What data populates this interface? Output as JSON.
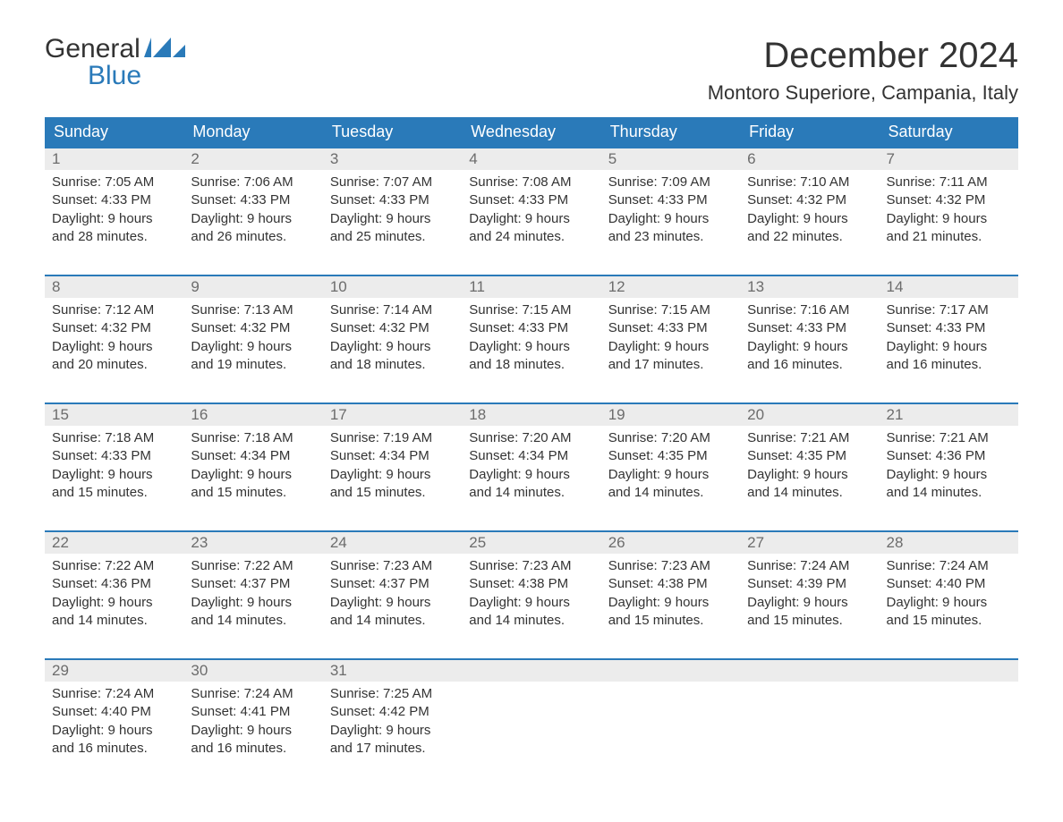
{
  "brand": {
    "word1": "General",
    "word2": "Blue"
  },
  "colors": {
    "brandBlue": "#2a7ab9",
    "headerText": "#333333",
    "dayNumBg": "#ececec",
    "dayNumText": "#6c6c6c",
    "bodyText": "#333333",
    "background": "#ffffff"
  },
  "title": "December 2024",
  "location": "Montoro Superiore, Campania, Italy",
  "daysOfWeek": [
    "Sunday",
    "Monday",
    "Tuesday",
    "Wednesday",
    "Thursday",
    "Friday",
    "Saturday"
  ],
  "typography": {
    "titleFontSize": 40,
    "locationFontSize": 22,
    "dowFontSize": 18,
    "dayNumFontSize": 17,
    "cellFontSize": 15
  },
  "weeks": [
    [
      {
        "n": "1",
        "sunrise": "Sunrise: 7:05 AM",
        "sunset": "Sunset: 4:33 PM",
        "d1": "Daylight: 9 hours",
        "d2": "and 28 minutes."
      },
      {
        "n": "2",
        "sunrise": "Sunrise: 7:06 AM",
        "sunset": "Sunset: 4:33 PM",
        "d1": "Daylight: 9 hours",
        "d2": "and 26 minutes."
      },
      {
        "n": "3",
        "sunrise": "Sunrise: 7:07 AM",
        "sunset": "Sunset: 4:33 PM",
        "d1": "Daylight: 9 hours",
        "d2": "and 25 minutes."
      },
      {
        "n": "4",
        "sunrise": "Sunrise: 7:08 AM",
        "sunset": "Sunset: 4:33 PM",
        "d1": "Daylight: 9 hours",
        "d2": "and 24 minutes."
      },
      {
        "n": "5",
        "sunrise": "Sunrise: 7:09 AM",
        "sunset": "Sunset: 4:33 PM",
        "d1": "Daylight: 9 hours",
        "d2": "and 23 minutes."
      },
      {
        "n": "6",
        "sunrise": "Sunrise: 7:10 AM",
        "sunset": "Sunset: 4:32 PM",
        "d1": "Daylight: 9 hours",
        "d2": "and 22 minutes."
      },
      {
        "n": "7",
        "sunrise": "Sunrise: 7:11 AM",
        "sunset": "Sunset: 4:32 PM",
        "d1": "Daylight: 9 hours",
        "d2": "and 21 minutes."
      }
    ],
    [
      {
        "n": "8",
        "sunrise": "Sunrise: 7:12 AM",
        "sunset": "Sunset: 4:32 PM",
        "d1": "Daylight: 9 hours",
        "d2": "and 20 minutes."
      },
      {
        "n": "9",
        "sunrise": "Sunrise: 7:13 AM",
        "sunset": "Sunset: 4:32 PM",
        "d1": "Daylight: 9 hours",
        "d2": "and 19 minutes."
      },
      {
        "n": "10",
        "sunrise": "Sunrise: 7:14 AM",
        "sunset": "Sunset: 4:32 PM",
        "d1": "Daylight: 9 hours",
        "d2": "and 18 minutes."
      },
      {
        "n": "11",
        "sunrise": "Sunrise: 7:15 AM",
        "sunset": "Sunset: 4:33 PM",
        "d1": "Daylight: 9 hours",
        "d2": "and 18 minutes."
      },
      {
        "n": "12",
        "sunrise": "Sunrise: 7:15 AM",
        "sunset": "Sunset: 4:33 PM",
        "d1": "Daylight: 9 hours",
        "d2": "and 17 minutes."
      },
      {
        "n": "13",
        "sunrise": "Sunrise: 7:16 AM",
        "sunset": "Sunset: 4:33 PM",
        "d1": "Daylight: 9 hours",
        "d2": "and 16 minutes."
      },
      {
        "n": "14",
        "sunrise": "Sunrise: 7:17 AM",
        "sunset": "Sunset: 4:33 PM",
        "d1": "Daylight: 9 hours",
        "d2": "and 16 minutes."
      }
    ],
    [
      {
        "n": "15",
        "sunrise": "Sunrise: 7:18 AM",
        "sunset": "Sunset: 4:33 PM",
        "d1": "Daylight: 9 hours",
        "d2": "and 15 minutes."
      },
      {
        "n": "16",
        "sunrise": "Sunrise: 7:18 AM",
        "sunset": "Sunset: 4:34 PM",
        "d1": "Daylight: 9 hours",
        "d2": "and 15 minutes."
      },
      {
        "n": "17",
        "sunrise": "Sunrise: 7:19 AM",
        "sunset": "Sunset: 4:34 PM",
        "d1": "Daylight: 9 hours",
        "d2": "and 15 minutes."
      },
      {
        "n": "18",
        "sunrise": "Sunrise: 7:20 AM",
        "sunset": "Sunset: 4:34 PM",
        "d1": "Daylight: 9 hours",
        "d2": "and 14 minutes."
      },
      {
        "n": "19",
        "sunrise": "Sunrise: 7:20 AM",
        "sunset": "Sunset: 4:35 PM",
        "d1": "Daylight: 9 hours",
        "d2": "and 14 minutes."
      },
      {
        "n": "20",
        "sunrise": "Sunrise: 7:21 AM",
        "sunset": "Sunset: 4:35 PM",
        "d1": "Daylight: 9 hours",
        "d2": "and 14 minutes."
      },
      {
        "n": "21",
        "sunrise": "Sunrise: 7:21 AM",
        "sunset": "Sunset: 4:36 PM",
        "d1": "Daylight: 9 hours",
        "d2": "and 14 minutes."
      }
    ],
    [
      {
        "n": "22",
        "sunrise": "Sunrise: 7:22 AM",
        "sunset": "Sunset: 4:36 PM",
        "d1": "Daylight: 9 hours",
        "d2": "and 14 minutes."
      },
      {
        "n": "23",
        "sunrise": "Sunrise: 7:22 AM",
        "sunset": "Sunset: 4:37 PM",
        "d1": "Daylight: 9 hours",
        "d2": "and 14 minutes."
      },
      {
        "n": "24",
        "sunrise": "Sunrise: 7:23 AM",
        "sunset": "Sunset: 4:37 PM",
        "d1": "Daylight: 9 hours",
        "d2": "and 14 minutes."
      },
      {
        "n": "25",
        "sunrise": "Sunrise: 7:23 AM",
        "sunset": "Sunset: 4:38 PM",
        "d1": "Daylight: 9 hours",
        "d2": "and 14 minutes."
      },
      {
        "n": "26",
        "sunrise": "Sunrise: 7:23 AM",
        "sunset": "Sunset: 4:38 PM",
        "d1": "Daylight: 9 hours",
        "d2": "and 15 minutes."
      },
      {
        "n": "27",
        "sunrise": "Sunrise: 7:24 AM",
        "sunset": "Sunset: 4:39 PM",
        "d1": "Daylight: 9 hours",
        "d2": "and 15 minutes."
      },
      {
        "n": "28",
        "sunrise": "Sunrise: 7:24 AM",
        "sunset": "Sunset: 4:40 PM",
        "d1": "Daylight: 9 hours",
        "d2": "and 15 minutes."
      }
    ],
    [
      {
        "n": "29",
        "sunrise": "Sunrise: 7:24 AM",
        "sunset": "Sunset: 4:40 PM",
        "d1": "Daylight: 9 hours",
        "d2": "and 16 minutes."
      },
      {
        "n": "30",
        "sunrise": "Sunrise: 7:24 AM",
        "sunset": "Sunset: 4:41 PM",
        "d1": "Daylight: 9 hours",
        "d2": "and 16 minutes."
      },
      {
        "n": "31",
        "sunrise": "Sunrise: 7:25 AM",
        "sunset": "Sunset: 4:42 PM",
        "d1": "Daylight: 9 hours",
        "d2": "and 17 minutes."
      },
      null,
      null,
      null,
      null
    ]
  ]
}
